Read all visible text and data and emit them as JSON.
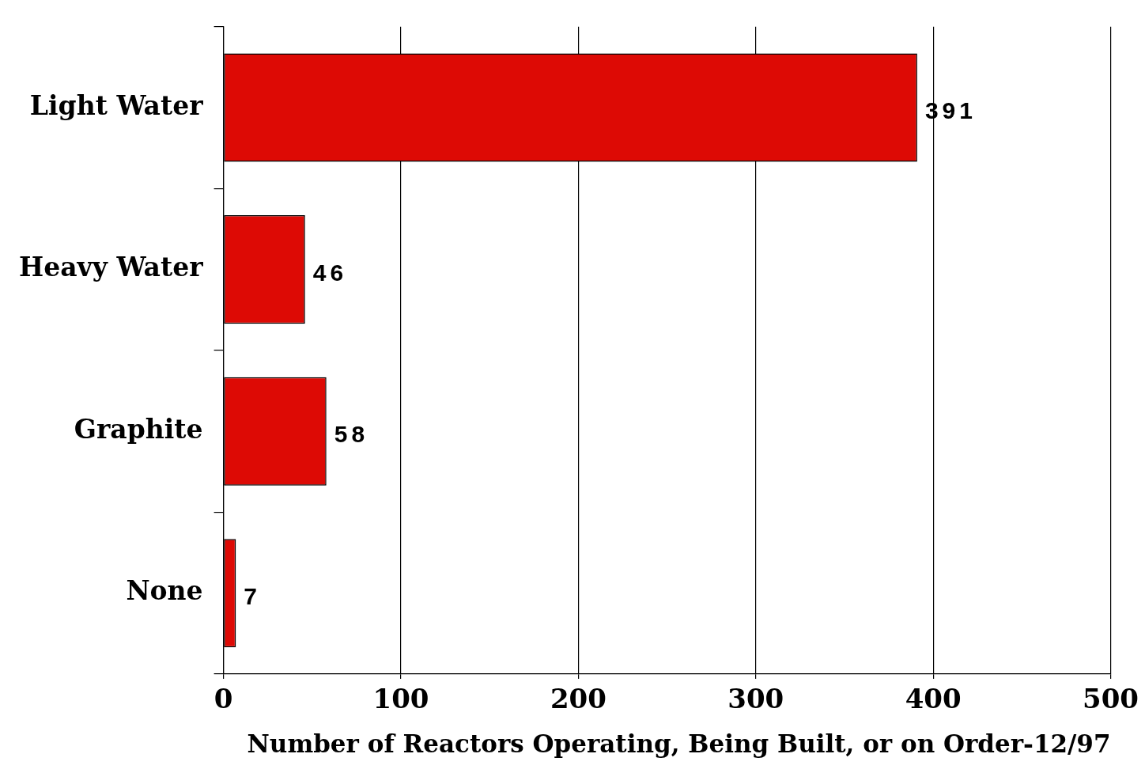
{
  "chart_data": {
    "type": "bar",
    "orientation": "horizontal",
    "categories": [
      "Light Water",
      "Heavy Water",
      "Graphite",
      "None"
    ],
    "values": [
      391,
      46,
      58,
      7
    ],
    "color": "#dd0a05",
    "xlabel": "Number of Reactors Operating, Being Built, or on Order-12/97",
    "xlim": [
      0,
      500
    ],
    "xticks": [
      0,
      100,
      200,
      300,
      400,
      500
    ],
    "grid": "x",
    "data_labels": true,
    "legend": false
  }
}
